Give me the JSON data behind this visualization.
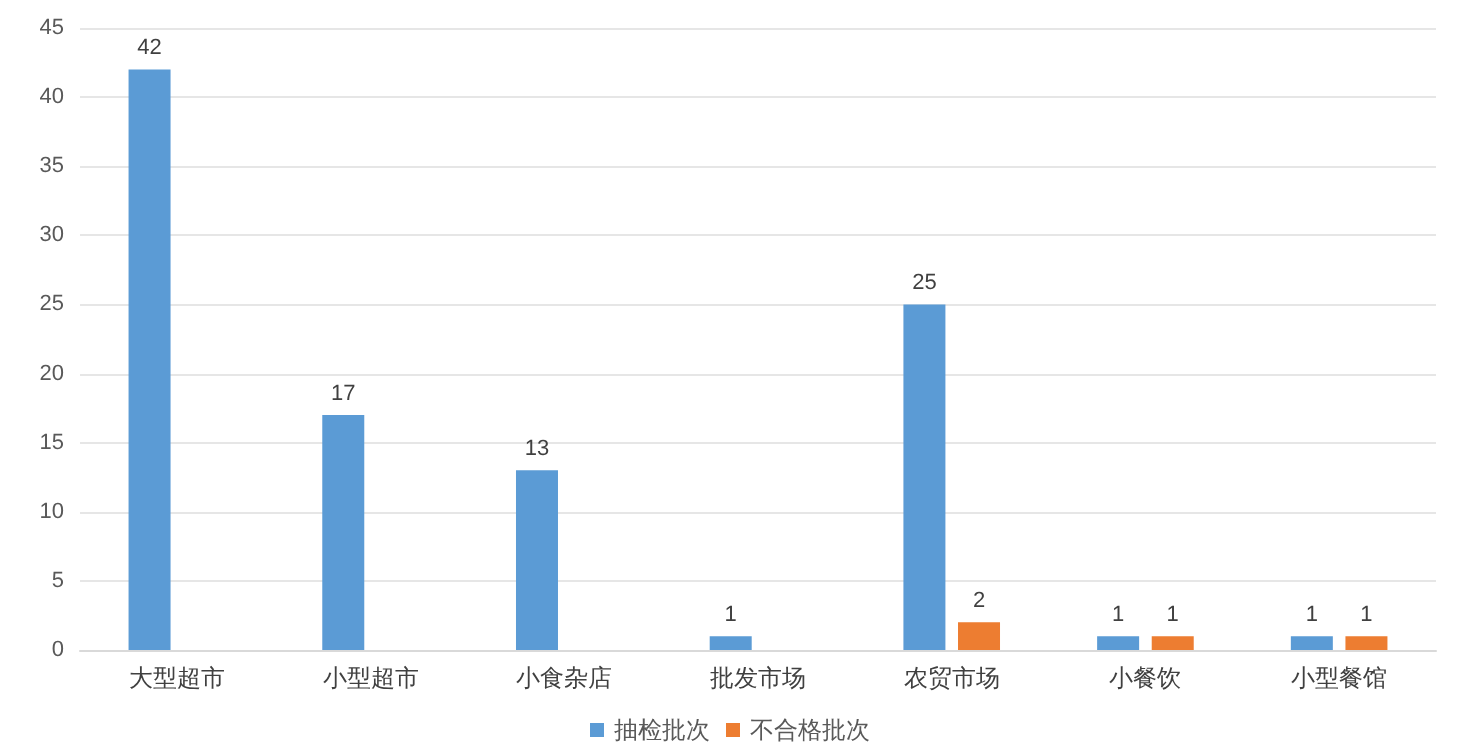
{
  "chart_data": {
    "type": "bar",
    "categories": [
      "大型超市",
      "小型超市",
      "小食杂店",
      "批发市场",
      "农贸市场",
      "小餐饮",
      "小型餐馆"
    ],
    "series": [
      {
        "name": "抽检批次",
        "color": "#5b9bd5",
        "values": [
          42,
          17,
          13,
          1,
          25,
          1,
          1
        ]
      },
      {
        "name": "不合格批次",
        "color": "#ed7d31",
        "values": [
          null,
          null,
          null,
          null,
          2,
          1,
          1
        ]
      }
    ],
    "ylim": [
      0,
      45
    ],
    "yticks": [
      0,
      5,
      10,
      15,
      20,
      25,
      30,
      35,
      40,
      45
    ],
    "grid": "y",
    "legend": "bottom",
    "data_labels": true
  }
}
